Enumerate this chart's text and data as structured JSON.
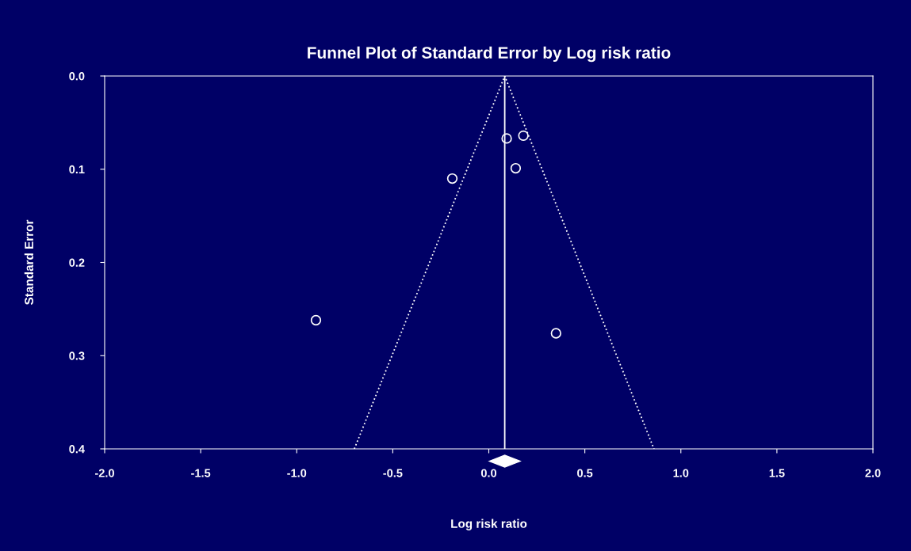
{
  "chart_data": {
    "type": "scatter",
    "title": "Funnel Plot of Standard Error by Log risk ratio",
    "xlabel": "Log risk ratio",
    "ylabel": "Standard Error",
    "series": [
      {
        "color": "#ffffff",
        "marker": "circle",
        "x": [
          0.093,
          0.18,
          0.14,
          -0.19,
          -0.9,
          0.35
        ],
        "values": [
          0.067,
          0.064,
          0.099,
          0.11,
          0.262,
          0.276
        ]
      },
      {
        "type": "line",
        "color": "#ffffff",
        "line_style": "dotted",
        "marker": "none",
        "x": [
          -0.7,
          0.083,
          0.86
        ],
        "values": [
          0.4,
          0.0,
          0.4
        ]
      }
    ],
    "ref_lines": [
      {
        "axis": "x",
        "value": 0.083,
        "color": "#ffffff",
        "line_style": "solid"
      }
    ],
    "xlim": [
      -2.0,
      2.0
    ],
    "xticks": [
      {
        "value": -2.0,
        "label": "-2.0"
      },
      {
        "value": -1.5,
        "label": "-1.5"
      },
      {
        "value": -1.0,
        "label": "-1.0"
      },
      {
        "value": -0.5,
        "label": "-0.5"
      },
      {
        "value": 0.0,
        "label": "0.0"
      },
      {
        "value": 0.5,
        "label": "0.5"
      },
      {
        "value": 1.0,
        "label": "1.0"
      },
      {
        "value": 1.5,
        "label": "1.5"
      },
      {
        "value": 2.0,
        "label": "2.0"
      }
    ],
    "ylim": [
      0.4,
      0.0
    ],
    "yticks": [
      {
        "value": 0.0,
        "label": "0.0"
      },
      {
        "value": 0.1,
        "label": "0.1"
      },
      {
        "value": 0.2,
        "label": "0.2"
      },
      {
        "value": 0.3,
        "label": "0.3"
      },
      {
        "value": 0.4,
        "label": "0.4"
      }
    ],
    "grid": false,
    "legend": false
  }
}
